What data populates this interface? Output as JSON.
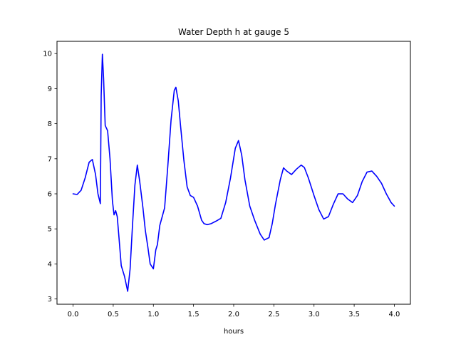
{
  "chart_data": {
    "type": "line",
    "title": "Water Depth h at gauge 5",
    "xlabel": "hours",
    "ylabel": "",
    "xlim": [
      -0.2,
      4.2
    ],
    "ylim": [
      2.85,
      10.35
    ],
    "xticks": [
      0.0,
      0.5,
      1.0,
      1.5,
      2.0,
      2.5,
      3.0,
      3.5,
      4.0
    ],
    "xtick_labels": [
      "0.0",
      "0.5",
      "1.0",
      "1.5",
      "2.0",
      "2.5",
      "3.0",
      "3.5",
      "4.0"
    ],
    "yticks": [
      3,
      4,
      5,
      6,
      7,
      8,
      9,
      10
    ],
    "ytick_labels": [
      "3",
      "4",
      "5",
      "6",
      "7",
      "8",
      "9",
      "10"
    ],
    "grid": false,
    "series": [
      {
        "color": "#0000ff",
        "x": [
          0.0,
          0.05,
          0.1,
          0.15,
          0.2,
          0.24,
          0.28,
          0.31,
          0.34,
          0.35,
          0.365,
          0.38,
          0.4,
          0.43,
          0.46,
          0.49,
          0.51,
          0.53,
          0.55,
          0.57,
          0.6,
          0.64,
          0.68,
          0.71,
          0.74,
          0.77,
          0.8,
          0.83,
          0.87,
          0.9,
          0.93,
          0.96,
          1.0,
          1.03,
          1.05,
          1.08,
          1.11,
          1.14,
          1.18,
          1.22,
          1.26,
          1.28,
          1.31,
          1.34,
          1.38,
          1.42,
          1.46,
          1.5,
          1.55,
          1.6,
          1.63,
          1.67,
          1.72,
          1.78,
          1.84,
          1.9,
          1.96,
          2.02,
          2.06,
          2.1,
          2.14,
          2.2,
          2.26,
          2.33,
          2.38,
          2.44,
          2.48,
          2.52,
          2.58,
          2.62,
          2.66,
          2.72,
          2.78,
          2.84,
          2.88,
          2.93,
          3.0,
          3.06,
          3.12,
          3.18,
          3.24,
          3.3,
          3.36,
          3.42,
          3.48,
          3.54,
          3.6,
          3.66,
          3.72,
          3.78,
          3.84,
          3.9,
          3.96,
          4.0
        ],
        "y": [
          6.0,
          5.98,
          6.1,
          6.45,
          6.9,
          6.98,
          6.55,
          6.0,
          5.72,
          8.8,
          9.98,
          9.3,
          7.95,
          7.8,
          7.0,
          5.8,
          5.4,
          5.52,
          5.35,
          4.8,
          3.95,
          3.65,
          3.22,
          3.85,
          5.1,
          6.25,
          6.82,
          6.35,
          5.6,
          4.95,
          4.5,
          4.0,
          3.86,
          4.4,
          4.55,
          5.1,
          5.35,
          5.6,
          6.8,
          8.1,
          8.95,
          9.04,
          8.65,
          7.9,
          6.95,
          6.2,
          5.95,
          5.9,
          5.65,
          5.25,
          5.15,
          5.12,
          5.15,
          5.22,
          5.3,
          5.75,
          6.45,
          7.3,
          7.52,
          7.1,
          6.4,
          5.65,
          5.25,
          4.85,
          4.68,
          4.75,
          5.15,
          5.7,
          6.4,
          6.74,
          6.65,
          6.55,
          6.7,
          6.82,
          6.75,
          6.45,
          5.95,
          5.55,
          5.28,
          5.35,
          5.7,
          6.0,
          6.0,
          5.85,
          5.75,
          5.95,
          6.35,
          6.62,
          6.65,
          6.5,
          6.3,
          6.0,
          5.75,
          5.65
        ]
      }
    ]
  }
}
